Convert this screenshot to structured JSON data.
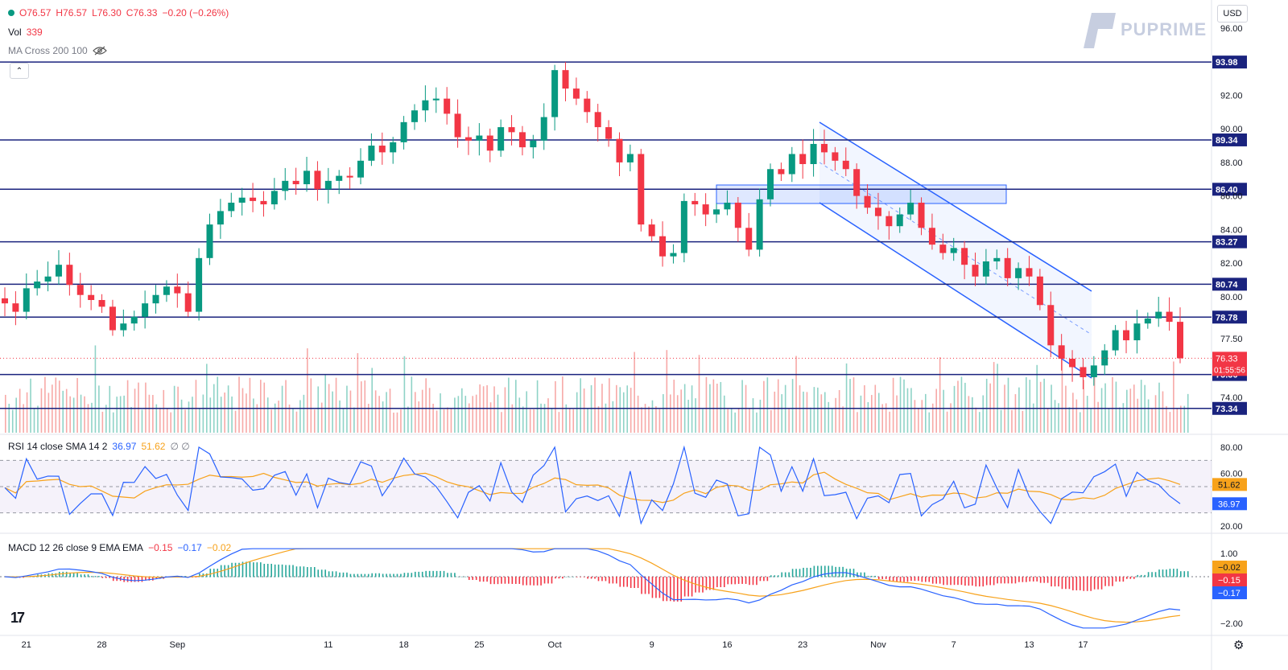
{
  "symbol_ohlc": {
    "o": "O76.57",
    "h": "H76.57",
    "l": "L76.30",
    "c": "C76.33",
    "chg": "−0.20 (−0.26%)"
  },
  "vol": {
    "label": "Vol",
    "value": "339"
  },
  "ma_cross": {
    "label": "MA Cross 200 100"
  },
  "currency": "USD",
  "brand": "PUPRIME",
  "tv_logo": "17",
  "price_axis": {
    "ticks": [
      {
        "v": 96,
        "t": "96.00"
      },
      {
        "v": 92,
        "t": "92.00"
      },
      {
        "v": 90,
        "t": "90.00"
      },
      {
        "v": 88,
        "t": "88.00"
      },
      {
        "v": 86,
        "t": "86.00"
      },
      {
        "v": 84,
        "t": "84.00"
      },
      {
        "v": 82,
        "t": "82.00"
      },
      {
        "v": 80,
        "t": "80.00"
      },
      {
        "v": 77.5,
        "t": "77.50"
      },
      {
        "v": 74,
        "t": "74.00"
      }
    ],
    "levels": [
      93.98,
      89.34,
      86.4,
      83.27,
      80.74,
      78.78,
      75.36,
      73.34
    ],
    "level_labels": [
      "93.98",
      "89.34",
      "86.40",
      "83.27",
      "80.74",
      "78.78",
      "75.36",
      "73.34"
    ],
    "last_price": "76.33",
    "countdown": "01:55:56"
  },
  "rsi": {
    "label": "RSI 14 close SMA 14 2",
    "rsi_value": "36.97",
    "sma_value": "51.62",
    "extra": "∅ ∅",
    "ticks": [
      {
        "v": 80,
        "t": "80.00"
      },
      {
        "v": 60,
        "t": "60.00"
      },
      {
        "v": 20,
        "t": "20.00"
      }
    ],
    "last_rsi": 36.97,
    "last_sma": 51.62
  },
  "macd": {
    "label": "MACD 12 26 close 9 EMA EMA",
    "hist": "−0.15",
    "macd": "−0.17",
    "signal": "−0.02",
    "ticks": [
      {
        "v": 1,
        "t": "1.00"
      },
      {
        "v": -2,
        "t": "−2.00"
      }
    ],
    "tag_signal": "−0.02",
    "tag_hist": "−0.15",
    "tag_macd": "−0.17"
  },
  "time_axis": [
    "21",
    "28",
    "Sep",
    "11",
    "18",
    "25",
    "Oct",
    "9",
    "16",
    "23",
    "Nov",
    "7",
    "13",
    "17"
  ],
  "time_axis_idx": [
    2,
    9,
    16,
    30,
    37,
    44,
    51,
    60,
    67,
    74,
    81,
    88,
    95,
    100
  ],
  "series": {
    "closes": [
      79.6,
      79.1,
      80.5,
      80.9,
      81.2,
      81.9,
      80.7,
      80.1,
      79.8,
      79.4,
      78.0,
      78.4,
      78.8,
      79.6,
      80.1,
      80.6,
      80.2,
      79.1,
      82.3,
      84.3,
      85.1,
      85.6,
      85.9,
      85.7,
      85.5,
      86.3,
      86.9,
      86.7,
      87.5,
      86.4,
      86.9,
      87.2,
      87.1,
      88.1,
      89.0,
      88.6,
      89.2,
      90.4,
      91.1,
      91.7,
      91.8,
      90.9,
      89.5,
      89.3,
      89.6,
      88.7,
      90.1,
      89.8,
      88.9,
      89.3,
      90.7,
      93.5,
      92.4,
      91.8,
      91.0,
      90.1,
      89.4,
      88.0,
      88.5,
      84.3,
      83.6,
      82.4,
      82.6,
      85.7,
      85.5,
      84.9,
      85.2,
      85.6,
      84.1,
      82.8,
      85.8,
      87.6,
      87.3,
      88.5,
      87.9,
      89.1,
      88.6,
      88.1,
      87.6,
      86.0,
      85.3,
      84.8,
      84.2,
      84.9,
      85.6,
      84.1,
      83.1,
      82.6,
      82.9,
      81.9,
      81.2,
      82.1,
      82.3,
      81.1,
      81.7,
      81.2,
      79.5,
      77.1,
      76.3,
      75.8,
      75.2,
      75.9,
      76.8,
      78.0,
      77.4,
      78.4,
      78.7,
      79.1,
      78.5,
      76.33
    ]
  }
}
